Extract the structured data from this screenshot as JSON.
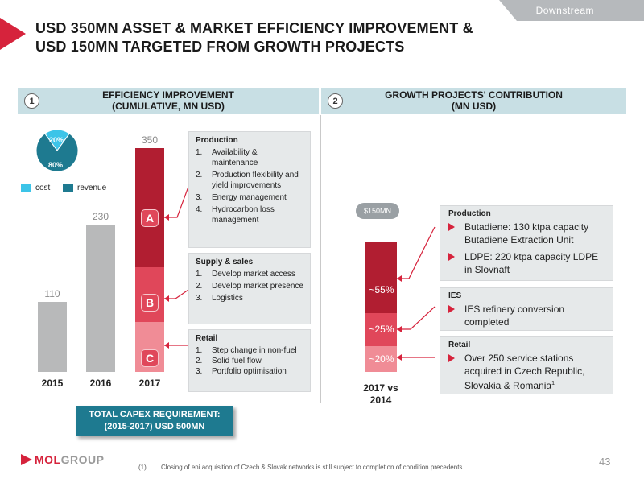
{
  "header": {
    "tag": "Downstream",
    "title_line1": "USD 350MN ASSET & MARKET EFFICIENCY IMPROVEMENT &",
    "title_line2": "USD 150MN TARGETED FROM GROWTH PROJECTS"
  },
  "left_section": {
    "number": "1",
    "heading_line1": "EFFICIENCY IMPROVEMENT",
    "heading_line2": "(CUMULATIVE, MN USD)"
  },
  "right_section": {
    "number": "2",
    "heading_line1": "GROWTH PROJECTS' CONTRIBUTION",
    "heading_line2": "(MN USD)"
  },
  "pie": {
    "slices": [
      {
        "label": "20%",
        "value": 20,
        "color": "#3cc4e8"
      },
      {
        "label": "80%",
        "value": 80,
        "color": "#1e7a90"
      }
    ]
  },
  "legend": [
    {
      "label": "cost",
      "color": "#3cc4e8"
    },
    {
      "label": "revenue",
      "color": "#1e7a90"
    }
  ],
  "chart_data": [
    {
      "type": "bar",
      "categories": [
        "2015",
        "2016",
        "2017"
      ],
      "values": [
        110,
        230,
        350
      ],
      "value_labels": [
        "110",
        "230",
        "350"
      ],
      "ylim": [
        0,
        350
      ],
      "segments_2017": [
        {
          "badge": "A",
          "color": "#b11e31"
        },
        {
          "badge": "B",
          "color": "#e0475a"
        },
        {
          "badge": "C",
          "color": "#f08c96"
        }
      ]
    },
    {
      "type": "bar",
      "categories": [
        "2017 vs\n2014"
      ],
      "total_label": "$150MN",
      "segments": [
        {
          "label": "~55%",
          "value": 55,
          "color": "#b11e31"
        },
        {
          "label": "~25%",
          "value": 25,
          "color": "#e0475a"
        },
        {
          "label": "~20%",
          "value": 20,
          "color": "#f08c96"
        }
      ]
    }
  ],
  "left_boxes": {
    "production": {
      "title": "Production",
      "items": [
        {
          "num": "1.",
          "text": "Availability & maintenance"
        },
        {
          "num": "2.",
          "text": "Production flexibility and yield improvements"
        },
        {
          "num": "3.",
          "text": "Energy management"
        },
        {
          "num": "4.",
          "text": "Hydrocarbon loss management"
        }
      ]
    },
    "supply": {
      "title": "Supply & sales",
      "items": [
        {
          "num": "1.",
          "text": "Develop market access"
        },
        {
          "num": "2.",
          "text": "Develop market presence"
        },
        {
          "num": "3.",
          "text": "Logistics"
        }
      ]
    },
    "retail": {
      "title": "Retail",
      "items": [
        {
          "num": "1.",
          "text": "Step change in non-fuel"
        },
        {
          "num": "2.",
          "text": "Solid fuel flow"
        },
        {
          "num": "3.",
          "text": "Portfolio optimisation"
        }
      ]
    }
  },
  "right_boxes": {
    "production": {
      "title": "Production",
      "items": [
        "Butadiene: 130 ktpa capacity Butadiene Extraction Unit",
        "LDPE: 220 ktpa capacity LDPE in Slovnaft"
      ]
    },
    "ies": {
      "title": "IES",
      "items": [
        "IES refinery conversion completed"
      ]
    },
    "retail": {
      "title": "Retail",
      "item_text": "Over 250 service stations acquired in Czech Republic, Slovakia & Romania",
      "item_sup": "1"
    }
  },
  "capex": {
    "line1": "TOTAL CAPEX REQUIREMENT:",
    "line2": "(2015-2017) USD 500MN"
  },
  "footer": {
    "logo_mol": "MOL",
    "logo_group": "GROUP",
    "note_num": "(1)",
    "note": "Closing of eni acquisition of Czech & Slovak networks is still subject to completion of condition precedents",
    "page": "43"
  }
}
